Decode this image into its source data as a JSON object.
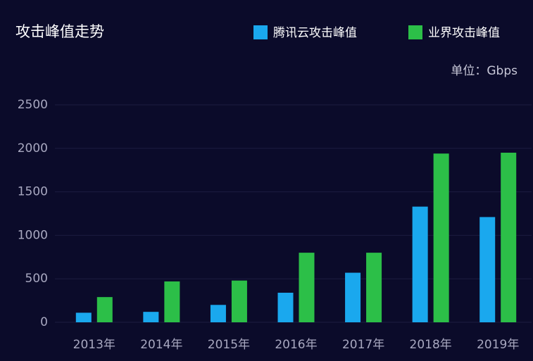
{
  "chart_data": {
    "type": "bar",
    "title": "攻击峰值走势",
    "unit": "单位：Gbps",
    "categories": [
      "2013年",
      "2014年",
      "2015年",
      "2016年",
      "2017年",
      "2018年",
      "2019年"
    ],
    "series": [
      {
        "name": "腾讯云攻击峰值",
        "color": "#1aa8ee",
        "values": [
          110,
          120,
          200,
          340,
          570,
          1330,
          1210
        ]
      },
      {
        "name": "业界攻击峰值",
        "color": "#2cbf48",
        "values": [
          290,
          470,
          480,
          800,
          800,
          1940,
          1950
        ]
      }
    ],
    "ylim": [
      0,
      2500
    ],
    "yticks": [
      0,
      500,
      1000,
      1500,
      2000,
      2500
    ],
    "grid": true
  }
}
